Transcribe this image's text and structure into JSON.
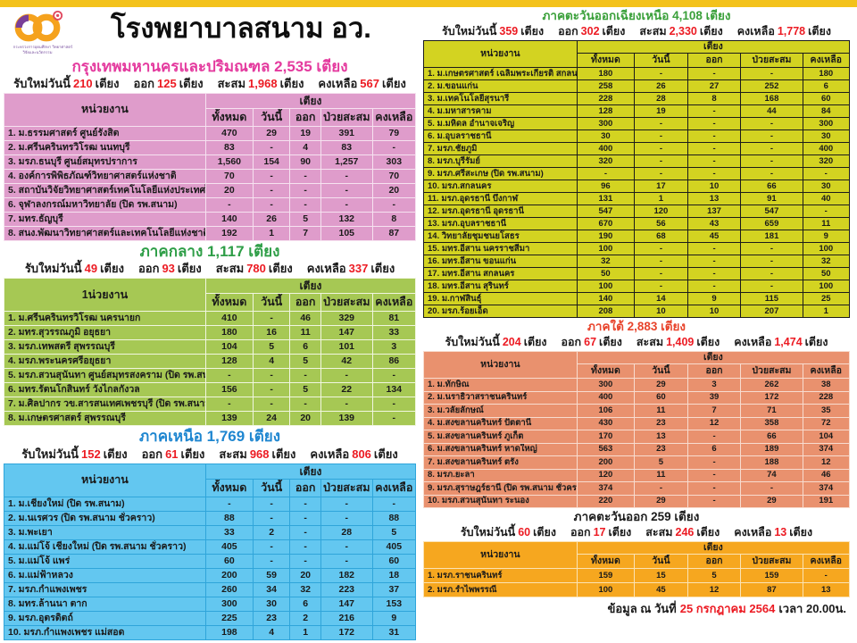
{
  "header": {
    "title": "โรงพยาบาลสนาม อว.",
    "logo_caption1": "กระทรวงการอุดมศึกษา วิทยาศาสตร์",
    "logo_caption2": "วิจัยและนวัตกรรม"
  },
  "colors": {
    "topbar": "#F3C21B",
    "stat_number_red": "#EC1B23",
    "subtitle_pink": "#E43A9E"
  },
  "labels": {
    "stats": {
      "new": "รับใหม่วันนี้",
      "out": "ออก",
      "cum": "สะสม",
      "remain": "คงเหลือ",
      "unit": "เตียง"
    },
    "table": {
      "beds_group": "เตียง",
      "sub": [
        "ทั้งหมด",
        "วันนี้",
        "ออก",
        "ป่วยสะสม",
        "คงเหลือ"
      ]
    }
  },
  "sections": [
    {
      "id": "bangkok",
      "column": "left",
      "title": "กรุงเทพมหานครและปริมณฑล",
      "total": "2,535",
      "title_color": "#E43A9E",
      "unit_header": "หน่วยงาน",
      "colors": {
        "bg": "#DF9CCB",
        "border": "#F6E2F0"
      },
      "stats": {
        "new": "210",
        "out": "125",
        "cum": "1,968",
        "remain": "567"
      },
      "rows": [
        {
          "name": "1. ม.ธรรมศาสตร์ ศูนย์รังสิต",
          "values": [
            "470",
            "29",
            "19",
            "391",
            "79"
          ]
        },
        {
          "name": "2. ม.ศรีนครินทรวิโรฒ นนทบุรี",
          "values": [
            "83",
            "-",
            "4",
            "83",
            "-"
          ]
        },
        {
          "name": "3. มรภ.ธนบุรี ศูนย์สมุทรปราการ",
          "values": [
            "1,560",
            "154",
            "90",
            "1,257",
            "303"
          ]
        },
        {
          "name": "4. องค์การพิพิธภัณฑ์วิทยาศาสตร์แห่งชาติ",
          "values": [
            "70",
            "-",
            "-",
            "-",
            "70"
          ]
        },
        {
          "name": "5. สถาบันวิจัยวิทยาศาสตร์เทคโนโลยีแห่งประเทศไทย",
          "values": [
            "20",
            "-",
            "-",
            "-",
            "20"
          ]
        },
        {
          "name": "6. จุฬาลงกรณ์มหาวิทยาลัย  (ปิด รพ.สนาม)",
          "values": [
            "-",
            "-",
            "-",
            "-",
            "-"
          ]
        },
        {
          "name": "7. มทร.ธัญบุรี",
          "values": [
            "140",
            "26",
            "5",
            "132",
            "8"
          ]
        },
        {
          "name": "8. สนง.พัฒนาวิทยาศาสตร์และเทคโนโลยีแห่งชาติ",
          "values": [
            "192",
            "1",
            "7",
            "105",
            "87"
          ]
        }
      ]
    },
    {
      "id": "central",
      "column": "left",
      "title": "ภาคกลาง",
      "total": "1,117",
      "title_color": "#2E9E47",
      "unit_header": "1น่วยงาน",
      "colors": {
        "bg": "#A6C854",
        "border": "#F1F6E0"
      },
      "stats": {
        "new": "49",
        "out": "93",
        "cum": "780",
        "remain": "337"
      },
      "rows": [
        {
          "name": "1. ม.ศรีนครินทรวิโรฒ นครนายก",
          "values": [
            "410",
            "-",
            "46",
            "329",
            "81"
          ]
        },
        {
          "name": "2. มทร.สุวรรณภูมิ อยุธยา",
          "values": [
            "180",
            "16",
            "11",
            "147",
            "33"
          ]
        },
        {
          "name": "3. มรภ.เทพสตรี สุพรรณบุรี",
          "values": [
            "104",
            "5",
            "6",
            "101",
            "3"
          ]
        },
        {
          "name": "4. มรภ.พระนครศรีอยุธยา",
          "values": [
            "128",
            "4",
            "5",
            "42",
            "86"
          ]
        },
        {
          "name": "5. มรภ.สวนสุนันทา ศูนย์สมุทรสงคราม  (ปิด รพ.สนาม)",
          "values": [
            "-",
            "-",
            "-",
            "-",
            "-"
          ]
        },
        {
          "name": "6. มทร.รัตนโกสินทร์ วังไกลกังวล",
          "values": [
            "156",
            "-",
            "5",
            "22",
            "134"
          ]
        },
        {
          "name": "7. ม.ศิลปากร วข.สารสนเทศเพชรบุรี (ปิด รพ.สนาม)",
          "values": [
            "-",
            "-",
            "-",
            "-",
            "-"
          ]
        },
        {
          "name": "8. ม.เกษตรศาสตร์ สุพรรณบุรี",
          "values": [
            "139",
            "24",
            "20",
            "139",
            "-"
          ]
        }
      ]
    },
    {
      "id": "north",
      "column": "left",
      "title": "ภาคเหนือ",
      "total": "1,769",
      "title_color": "#1E86D0",
      "unit_header": "หน่วยงาน",
      "colors": {
        "bg": "#63C7F0",
        "border": "#2FA5DA"
      },
      "stats": {
        "new": "152",
        "out": "61",
        "cum": "968",
        "remain": "806"
      },
      "rows": [
        {
          "name": "1. ม.เชียงใหม่  (ปิด รพ.สนาม)",
          "values": [
            "-",
            "-",
            "-",
            "-",
            "-"
          ]
        },
        {
          "name": "2. ม.นเรศวร (ปิด รพ.สนาม ชั่วคราว)",
          "values": [
            "88",
            "-",
            "-",
            "-",
            "88"
          ]
        },
        {
          "name": "3. ม.พะเยา",
          "values": [
            "33",
            "2",
            "-",
            "28",
            "5"
          ]
        },
        {
          "name": "4. ม.แม่โจ้ เชียงใหม่ (ปิด รพ.สนาม ชั่วคราว)",
          "values": [
            "405",
            "-",
            "-",
            "-",
            "405"
          ]
        },
        {
          "name": "5. ม.แม่โจ้ แพร่",
          "values": [
            "60",
            "-",
            "-",
            "-",
            "60"
          ]
        },
        {
          "name": "6. ม.แม่ฟ้าหลวง",
          "values": [
            "200",
            "59",
            "20",
            "182",
            "18"
          ]
        },
        {
          "name": "7. มรภ.กำแพงเพชร",
          "values": [
            "260",
            "34",
            "32",
            "223",
            "37"
          ]
        },
        {
          "name": "8. มทร.ล้านนา ตาก",
          "values": [
            "300",
            "30",
            "6",
            "147",
            "153"
          ]
        },
        {
          "name": "9. มรภ.อุตรดิตถ์",
          "values": [
            "225",
            "23",
            "2",
            "216",
            "9"
          ]
        },
        {
          "name": "10. มรภ.กำแพงเพชร แม่สอด",
          "values": [
            "198",
            "4",
            "1",
            "172",
            "31"
          ]
        }
      ]
    },
    {
      "id": "northeast",
      "column": "right",
      "title": "ภาคตะวันออกเฉียงเหนือ",
      "total": "4,108",
      "title_color": "#3AA03A",
      "unit_header": "หน่วยงาน",
      "colors": {
        "bg": "#D3D321",
        "border": "#1B1B1B"
      },
      "stats": {
        "new": "359",
        "out": "302",
        "cum": "2,330",
        "remain": "1,778"
      },
      "rows": [
        {
          "name": "1. ม.เกษตรศาสตร์ เฉลิมพระเกียรติ สกลนคร",
          "values": [
            "180",
            "-",
            "-",
            "-",
            "180"
          ]
        },
        {
          "name": "2. ม.ขอนแก่น",
          "values": [
            "258",
            "26",
            "27",
            "252",
            "6"
          ]
        },
        {
          "name": "3. ม.เทคโนโลยีสุรนารี",
          "values": [
            "228",
            "28",
            "8",
            "168",
            "60"
          ]
        },
        {
          "name": "4. ม.มหาสารคาม",
          "values": [
            "128",
            "19",
            "-",
            "44",
            "84"
          ]
        },
        {
          "name": "5. ม.มหิดล อำนาจเจริญ",
          "values": [
            "300",
            "-",
            "-",
            "-",
            "300"
          ]
        },
        {
          "name": "6. ม.อุบลราชธานี",
          "values": [
            "30",
            "-",
            "-",
            "-",
            "30"
          ]
        },
        {
          "name": "7. มรภ.ชัยภูมิ",
          "values": [
            "400",
            "-",
            "-",
            "-",
            "400"
          ]
        },
        {
          "name": "8. มรภ.บุรีรัมย์",
          "values": [
            "320",
            "-",
            "-",
            "-",
            "320"
          ]
        },
        {
          "name": "9. มรภ.ศรีสะเกษ  (ปิด รพ.สนาม)",
          "values": [
            "-",
            "-",
            "-",
            "-",
            "-"
          ]
        },
        {
          "name": "10. มรภ.สกลนคร",
          "values": [
            "96",
            "17",
            "10",
            "66",
            "30"
          ]
        },
        {
          "name": "11. มรภ.อุดรธานี บึงกาฬ",
          "values": [
            "131",
            "1",
            "13",
            "91",
            "40"
          ]
        },
        {
          "name": "12. มรภ.อุดรธานี อุดรธานี",
          "values": [
            "547",
            "120",
            "137",
            "547",
            "-"
          ]
        },
        {
          "name": "13. มรภ.อุบลราชธานี",
          "values": [
            "670",
            "56",
            "43",
            "659",
            "11"
          ]
        },
        {
          "name": "14. วิทยาลัยชุมชนยโสธร",
          "values": [
            "190",
            "68",
            "45",
            "181",
            "9"
          ]
        },
        {
          "name": "15. มทร.อีสาน นครราชสีมา",
          "values": [
            "100",
            "-",
            "-",
            "-",
            "100"
          ]
        },
        {
          "name": "16. มทร.อีสาน ขอนแก่น",
          "values": [
            "32",
            "-",
            "-",
            "-",
            "32"
          ]
        },
        {
          "name": "17. มทร.อีสาน สกลนคร",
          "values": [
            "50",
            "-",
            "-",
            "-",
            "50"
          ]
        },
        {
          "name": "18. มทร.อีสาน สุรินทร์",
          "values": [
            "100",
            "-",
            "-",
            "-",
            "100"
          ]
        },
        {
          "name": "19. ม.กาฬสินธุ์",
          "values": [
            "140",
            "14",
            "9",
            "115",
            "25"
          ]
        },
        {
          "name": "20. มรภ.ร้อยเอ็ด",
          "values": [
            "208",
            "10",
            "10",
            "207",
            "1"
          ]
        }
      ]
    },
    {
      "id": "south",
      "column": "right",
      "title": "ภาคใต้",
      "total": "2,883",
      "title_color": "#E8432B",
      "unit_header": "หน่วยงาน",
      "colors": {
        "bg": "#E9916E",
        "border": "#F8DCCF"
      },
      "stats": {
        "new": "204",
        "out": "67",
        "cum": "1,409",
        "remain": "1,474"
      },
      "rows": [
        {
          "name": "1. ม.ทักษิณ",
          "values": [
            "300",
            "29",
            "3",
            "262",
            "38"
          ]
        },
        {
          "name": "2. ม.นราธิวาสราชนครินทร์",
          "values": [
            "400",
            "60",
            "39",
            "172",
            "228"
          ]
        },
        {
          "name": "3. ม.วลัยลักษณ์",
          "values": [
            "106",
            "11",
            "7",
            "71",
            "35"
          ]
        },
        {
          "name": "4. ม.สงขลานครินทร์ ปัตตานี",
          "values": [
            "430",
            "23",
            "12",
            "358",
            "72"
          ]
        },
        {
          "name": "5. ม.สงขลานครินทร์ ภูเก็ต",
          "values": [
            "170",
            "13",
            "-",
            "66",
            "104"
          ]
        },
        {
          "name": "6. ม.สงขลานครินทร์ หาดใหญ่",
          "values": [
            "563",
            "23",
            "6",
            "189",
            "374"
          ]
        },
        {
          "name": "7. ม.สงขลานครินทร์ ตรัง",
          "values": [
            "200",
            "5",
            "-",
            "188",
            "12"
          ]
        },
        {
          "name": "8. มรภ.ยะลา",
          "values": [
            "120",
            "11",
            "-",
            "74",
            "46"
          ]
        },
        {
          "name": "9. มรภ.สุราษฎร์ธานี  (ปิด รพ.สนาม ชั่วคราว)",
          "values": [
            "374",
            "-",
            "-",
            "-",
            "374"
          ]
        },
        {
          "name": "10. มรภ.สวนสุนันทา ระนอง",
          "values": [
            "220",
            "29",
            "-",
            "29",
            "191"
          ]
        }
      ]
    },
    {
      "id": "east",
      "column": "right",
      "title": "ภาคตะวันออก",
      "total": "259",
      "title_color": "#1B1B1B",
      "unit_header": "หน่วยงาน",
      "colors": {
        "bg": "#F6A71F",
        "border": "#FBE3B4"
      },
      "stats": {
        "new": "60",
        "out": "17",
        "cum": "246",
        "remain": "13"
      },
      "rows": [
        {
          "name": "1. มรภ.ราชนครินทร์",
          "values": [
            "159",
            "15",
            "5",
            "159",
            "-"
          ]
        },
        {
          "name": "2. มรภ.รำไพพรรณี",
          "values": [
            "100",
            "45",
            "12",
            "87",
            "13"
          ]
        }
      ]
    }
  ],
  "footer": {
    "prefix": "ข้อมูล ณ วันที่",
    "date": "25 กรกฎาคม 2564",
    "suffix": "เวลา  20.00น."
  }
}
